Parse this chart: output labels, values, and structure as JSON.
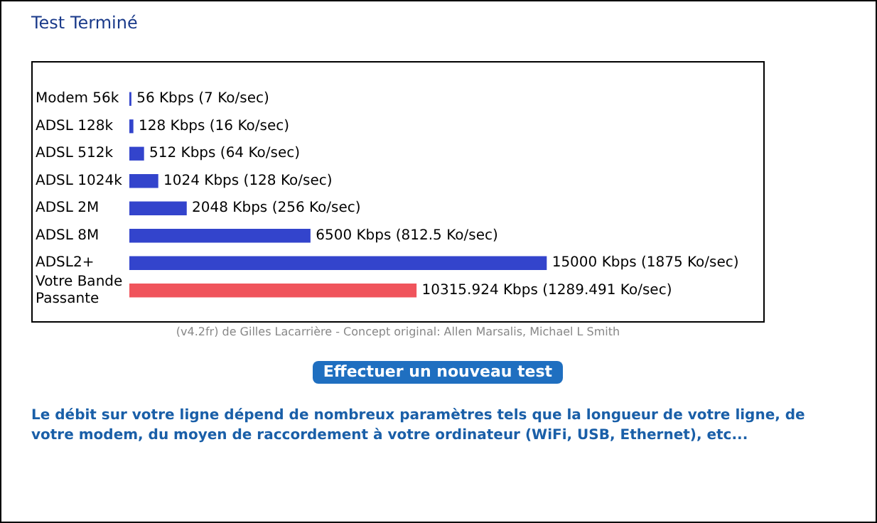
{
  "chart_data": {
    "type": "bar",
    "orientation": "horizontal",
    "title": "Test Terminé",
    "categories": [
      "Modem 56k",
      "ADSL 128k",
      "ADSL 512k",
      "ADSL 1024k",
      "ADSL 2M",
      "ADSL 8M",
      "ADSL2+",
      "Votre Bande Passante"
    ],
    "values": [
      56,
      128,
      512,
      1024,
      2048,
      6500,
      15000,
      10315.924
    ],
    "value_labels": [
      "56 Kbps (7 Ko/sec)",
      "128 Kbps (16 Ko/sec)",
      "512 Kbps (64 Ko/sec)",
      "1024 Kbps (128 Ko/sec)",
      "2048 Kbps (256 Ko/sec)",
      "6500 Kbps (812.5 Ko/sec)",
      "15000 Kbps (1875 Ko/sec)",
      "10315.924 Kbps (1289.491 Ko/sec)"
    ],
    "colors": [
      "#3344cc",
      "#3344cc",
      "#3344cc",
      "#3344cc",
      "#3344cc",
      "#3344cc",
      "#3344cc",
      "#f0545c"
    ],
    "annotations": [
      "(v4.2fr) de Gilles Lacarrière - Concept original: Allen Marsalis, Michael L Smith",
      "Effectuer un nouveau test",
      "Le débit sur votre ligne dépend de nombreux paramètres tels que la longueur de votre ligne, de votre modem, du moyen de raccordement à votre ordinateur (WiFi, USB, Ethernet), etc..."
    ]
  }
}
